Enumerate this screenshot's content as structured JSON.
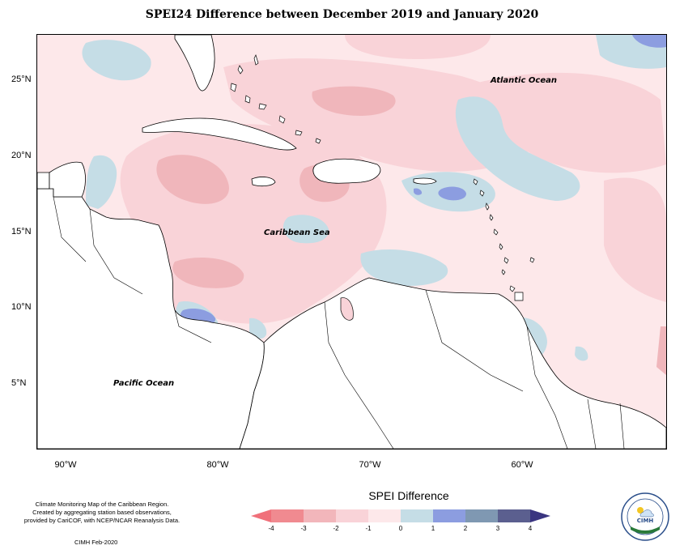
{
  "title": "SPEI24 Difference between December 2019 and January 2020",
  "latitude_labels": [
    "25°N",
    "20°N",
    "15°N",
    "10°N",
    "5°N"
  ],
  "longitude_labels": [
    "90°W",
    "80°W",
    "70°W",
    "60°W"
  ],
  "ocean_labels": {
    "atlantic": "Atlantic Ocean",
    "caribbean": "Caribbean Sea",
    "pacific": "Pacific Ocean"
  },
  "footer": {
    "line1": "Climate Monitoring Map of the Caribbean Region.",
    "line2": "Created by aggregating station based observations,",
    "line3": "provided by CariCOF, with NCEP/NCAR Reanalysis Data.",
    "credit": "CIMH Feb-2020"
  },
  "legend": {
    "title": "SPEI Difference",
    "ticks": [
      "-4",
      "-3",
      "-2",
      "-1",
      "0",
      "1",
      "2",
      "3",
      "4"
    ],
    "colors": [
      "#f08a90",
      "#f2b6bb",
      "#f9d3d8",
      "#fde8ea",
      "#c5dde6",
      "#8c9de0",
      "#7f98b2",
      "#5b5f8f"
    ],
    "arrow_left_color": "#f0707a",
    "arrow_right_color": "#3a3580"
  },
  "logo": {
    "text_center": "CIMH",
    "ring_text": "Caribbean Institute for Meteorology and Hydrology"
  },
  "colors": {
    "land": "#ffffff",
    "ocean_base": "#fde8ea",
    "dry_mild": "#f9d3d8",
    "dry_moderate": "#f0b6bb",
    "wet_mild": "#c5dde6",
    "wet_moderate": "#8c9de0"
  }
}
